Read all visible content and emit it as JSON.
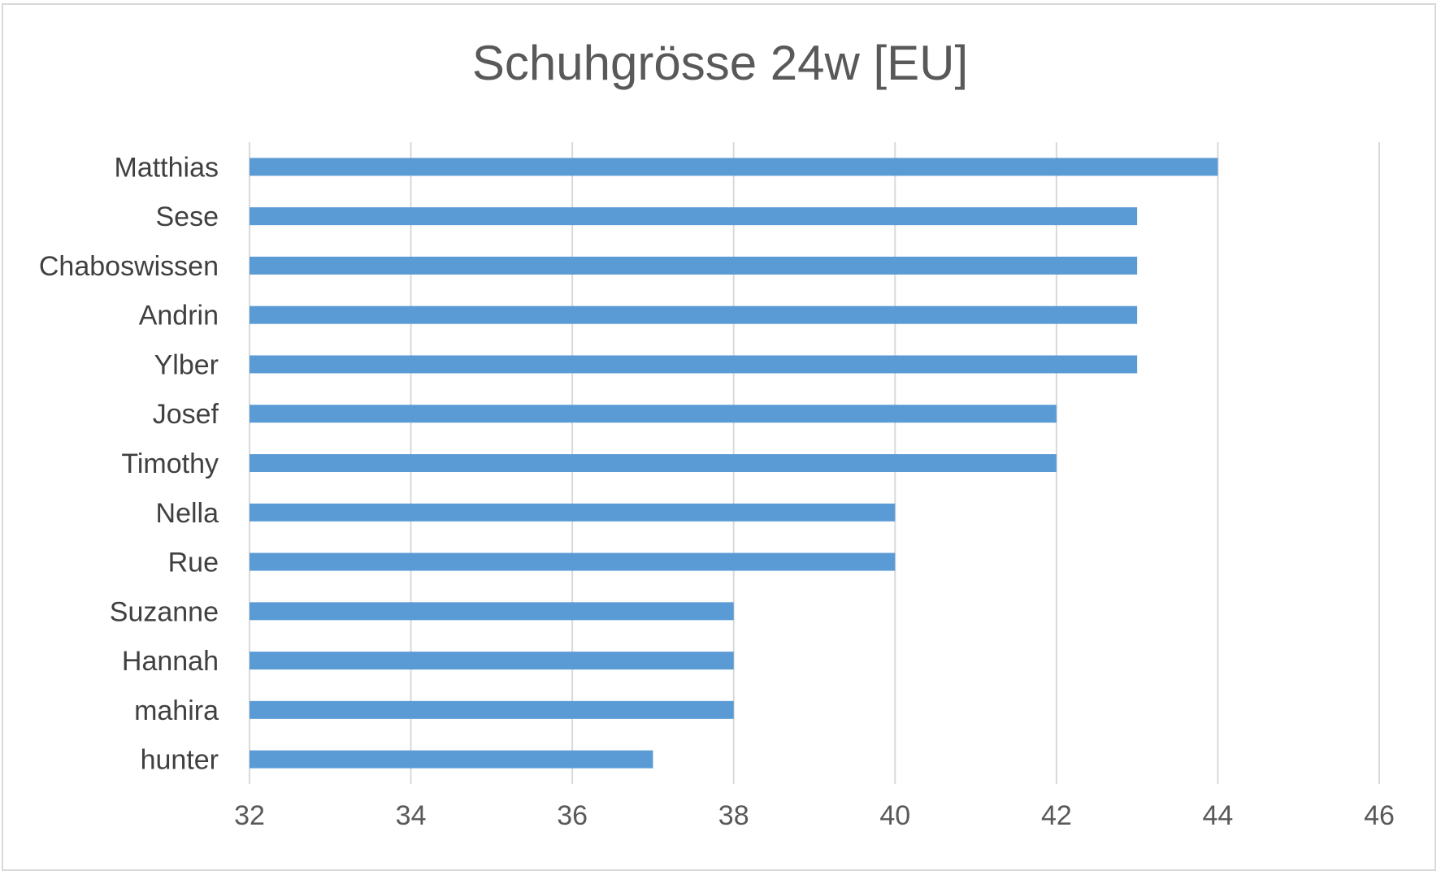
{
  "chart_data": {
    "type": "bar",
    "orientation": "horizontal",
    "title": "Schuhgrösse 24w [EU]",
    "xlabel": "",
    "ylabel": "",
    "categories": [
      "Matthias",
      "Sese",
      "Chaboswissen",
      "Andrin",
      "Ylber",
      "Josef",
      "Timothy",
      "Nella",
      "Rue",
      "Suzanne",
      "Hannah",
      "mahira",
      "hunter"
    ],
    "values": [
      44,
      43,
      43,
      43,
      43,
      42,
      42,
      40,
      40,
      38,
      38,
      38,
      37
    ],
    "xlim": [
      32,
      46
    ],
    "xticks": [
      "32",
      "34",
      "36",
      "38",
      "40",
      "42",
      "44",
      "46"
    ],
    "grid": "vertical",
    "legend": "none",
    "bar_color": "#5b9bd5"
  }
}
